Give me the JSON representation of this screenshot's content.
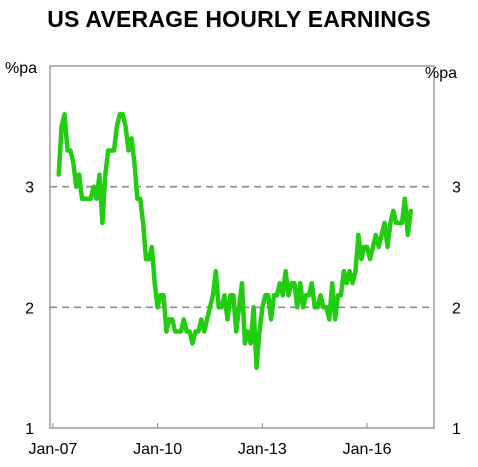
{
  "chart_data": {
    "type": "line",
    "title": "US AVERAGE HOURLY EARNINGS",
    "ylabel_left": "%pa",
    "ylabel_right": "%pa",
    "ylim": [
      1,
      4
    ],
    "yticks": [
      1,
      2,
      3
    ],
    "xlim": [
      "2006-12",
      "2017-12"
    ],
    "xticks": [
      {
        "label": "Jan-07",
        "date": "2007-01"
      },
      {
        "label": "Jan-10",
        "date": "2010-01"
      },
      {
        "label": "Jan-13",
        "date": "2013-01"
      },
      {
        "label": "Jan-16",
        "date": "2016-01"
      }
    ],
    "gridlines": [
      2,
      3
    ],
    "line_color": "#22cc11",
    "series": [
      {
        "points": [
          [
            "2007-03",
            3.1
          ],
          [
            "2007-04",
            3.5
          ],
          [
            "2007-05",
            3.6
          ],
          [
            "2007-06",
            3.3
          ],
          [
            "2007-07",
            3.3
          ],
          [
            "2007-08",
            3.2
          ],
          [
            "2007-09",
            3.0
          ],
          [
            "2007-10",
            3.1
          ],
          [
            "2007-11",
            2.9
          ],
          [
            "2007-12",
            2.9
          ],
          [
            "2008-01",
            2.9
          ],
          [
            "2008-02",
            2.9
          ],
          [
            "2008-03",
            3.0
          ],
          [
            "2008-04",
            2.9
          ],
          [
            "2008-05",
            3.1
          ],
          [
            "2008-06",
            2.7
          ],
          [
            "2008-07",
            3.1
          ],
          [
            "2008-08",
            3.3
          ],
          [
            "2008-09",
            3.3
          ],
          [
            "2008-10",
            3.3
          ],
          [
            "2008-11",
            3.5
          ],
          [
            "2008-12",
            3.6
          ],
          [
            "2009-01",
            3.6
          ],
          [
            "2009-02",
            3.5
          ],
          [
            "2009-03",
            3.3
          ],
          [
            "2009-04",
            3.4
          ],
          [
            "2009-05",
            3.2
          ],
          [
            "2009-06",
            2.9
          ],
          [
            "2009-07",
            2.9
          ],
          [
            "2009-08",
            2.7
          ],
          [
            "2009-09",
            2.4
          ],
          [
            "2009-10",
            2.4
          ],
          [
            "2009-11",
            2.5
          ],
          [
            "2009-12",
            2.2
          ],
          [
            "2010-01",
            2.0
          ],
          [
            "2010-02",
            2.1
          ],
          [
            "2010-03",
            2.1
          ],
          [
            "2010-04",
            1.8
          ],
          [
            "2010-05",
            1.9
          ],
          [
            "2010-06",
            1.9
          ],
          [
            "2010-07",
            1.8
          ],
          [
            "2010-08",
            1.8
          ],
          [
            "2010-09",
            1.8
          ],
          [
            "2010-10",
            1.9
          ],
          [
            "2010-11",
            1.8
          ],
          [
            "2010-12",
            1.8
          ],
          [
            "2011-01",
            1.7
          ],
          [
            "2011-02",
            1.8
          ],
          [
            "2011-03",
            1.8
          ],
          [
            "2011-04",
            1.9
          ],
          [
            "2011-05",
            1.8
          ],
          [
            "2011-06",
            1.9
          ],
          [
            "2011-07",
            2.0
          ],
          [
            "2011-08",
            2.1
          ],
          [
            "2011-09",
            2.3
          ],
          [
            "2011-10",
            2.0
          ],
          [
            "2011-11",
            2.0
          ],
          [
            "2011-12",
            2.1
          ],
          [
            "2012-01",
            1.9
          ],
          [
            "2012-02",
            2.1
          ],
          [
            "2012-03",
            2.1
          ],
          [
            "2012-04",
            1.8
          ],
          [
            "2012-05",
            2.0
          ],
          [
            "2012-06",
            2.2
          ],
          [
            "2012-07",
            1.7
          ],
          [
            "2012-08",
            1.8
          ],
          [
            "2012-09",
            1.7
          ],
          [
            "2012-10",
            2.0
          ],
          [
            "2012-11",
            1.5
          ],
          [
            "2012-12",
            1.8
          ],
          [
            "2013-01",
            2.0
          ],
          [
            "2013-02",
            2.1
          ],
          [
            "2013-03",
            2.1
          ],
          [
            "2013-04",
            1.9
          ],
          [
            "2013-05",
            2.1
          ],
          [
            "2013-06",
            2.1
          ],
          [
            "2013-07",
            2.2
          ],
          [
            "2013-08",
            2.1
          ],
          [
            "2013-09",
            2.3
          ],
          [
            "2013-10",
            2.1
          ],
          [
            "2013-11",
            2.2
          ],
          [
            "2013-12",
            2.2
          ],
          [
            "2014-01",
            2.0
          ],
          [
            "2014-02",
            2.2
          ],
          [
            "2014-03",
            2.0
          ],
          [
            "2014-04",
            2.1
          ],
          [
            "2014-05",
            2.1
          ],
          [
            "2014-06",
            2.2
          ],
          [
            "2014-07",
            2.0
          ],
          [
            "2014-08",
            2.0
          ],
          [
            "2014-09",
            2.1
          ],
          [
            "2014-10",
            2.0
          ],
          [
            "2014-11",
            2.0
          ],
          [
            "2014-12",
            1.9
          ],
          [
            "2015-01",
            2.2
          ],
          [
            "2015-02",
            1.9
          ],
          [
            "2015-03",
            2.1
          ],
          [
            "2015-04",
            2.1
          ],
          [
            "2015-05",
            2.3
          ],
          [
            "2015-06",
            2.2
          ],
          [
            "2015-07",
            2.3
          ],
          [
            "2015-08",
            2.2
          ],
          [
            "2015-09",
            2.3
          ],
          [
            "2015-10",
            2.6
          ],
          [
            "2015-11",
            2.4
          ],
          [
            "2015-12",
            2.5
          ],
          [
            "2016-01",
            2.5
          ],
          [
            "2016-02",
            2.4
          ],
          [
            "2016-03",
            2.5
          ],
          [
            "2016-04",
            2.6
          ],
          [
            "2016-05",
            2.5
          ],
          [
            "2016-06",
            2.6
          ],
          [
            "2016-07",
            2.7
          ],
          [
            "2016-08",
            2.5
          ],
          [
            "2016-09",
            2.7
          ],
          [
            "2016-10",
            2.8
          ],
          [
            "2016-11",
            2.7
          ],
          [
            "2016-12",
            2.7
          ],
          [
            "2017-01",
            2.7
          ],
          [
            "2017-02",
            2.9
          ],
          [
            "2017-03",
            2.6
          ],
          [
            "2017-04",
            2.8
          ]
        ]
      }
    ]
  }
}
